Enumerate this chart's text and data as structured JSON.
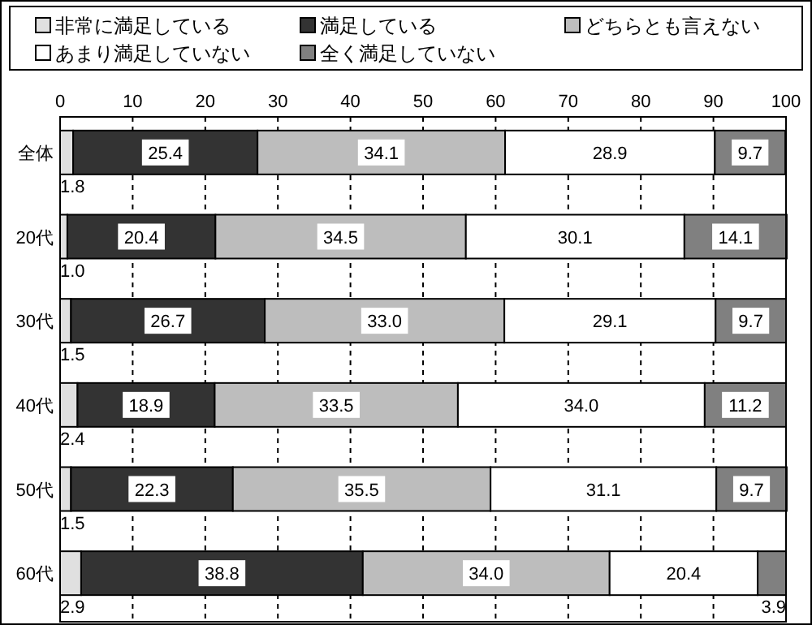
{
  "chart_data": {
    "type": "bar",
    "orientation": "horizontal",
    "stacked": true,
    "categories": [
      "全体",
      "20代",
      "30代",
      "40代",
      "50代",
      "60代"
    ],
    "series": [
      {
        "name": "非常に満足している",
        "color": "#e0e0e0",
        "values": [
          1.8,
          1.0,
          1.5,
          2.4,
          1.5,
          2.9
        ],
        "value_labels": [
          "1.8",
          "1.0",
          "1.5",
          "2.4",
          "1.5",
          "2.9"
        ]
      },
      {
        "name": "満足している",
        "color": "#333333",
        "values": [
          25.4,
          20.4,
          26.7,
          18.9,
          22.3,
          38.8
        ],
        "value_labels": [
          "25.4",
          "20.4",
          "26.7",
          "18.9",
          "22.3",
          "38.8"
        ]
      },
      {
        "name": "どちらとも言えない",
        "color": "#bdbdbd",
        "values": [
          34.1,
          34.5,
          33.0,
          33.5,
          35.5,
          34.0
        ],
        "value_labels": [
          "34.1",
          "34.5",
          "33.0",
          "33.5",
          "35.5",
          "34.0"
        ]
      },
      {
        "name": "あまり満足していない",
        "color": "#ffffff",
        "values": [
          28.9,
          30.1,
          29.1,
          34.0,
          31.1,
          20.4
        ],
        "value_labels": [
          "28.9",
          "30.1",
          "29.1",
          "34.0",
          "31.1",
          "20.4"
        ]
      },
      {
        "name": "全く満足していない",
        "color": "#808080",
        "values": [
          9.7,
          14.1,
          9.7,
          11.2,
          9.7,
          3.9
        ],
        "value_labels": [
          "9.7",
          "14.1",
          "9.7",
          "11.2",
          "9.7",
          "3.9"
        ]
      }
    ],
    "xlim": [
      0,
      100
    ],
    "xticks": [
      0,
      10,
      20,
      30,
      40,
      50,
      60,
      70,
      80,
      90,
      100
    ],
    "grid": "x",
    "legend": "top"
  }
}
